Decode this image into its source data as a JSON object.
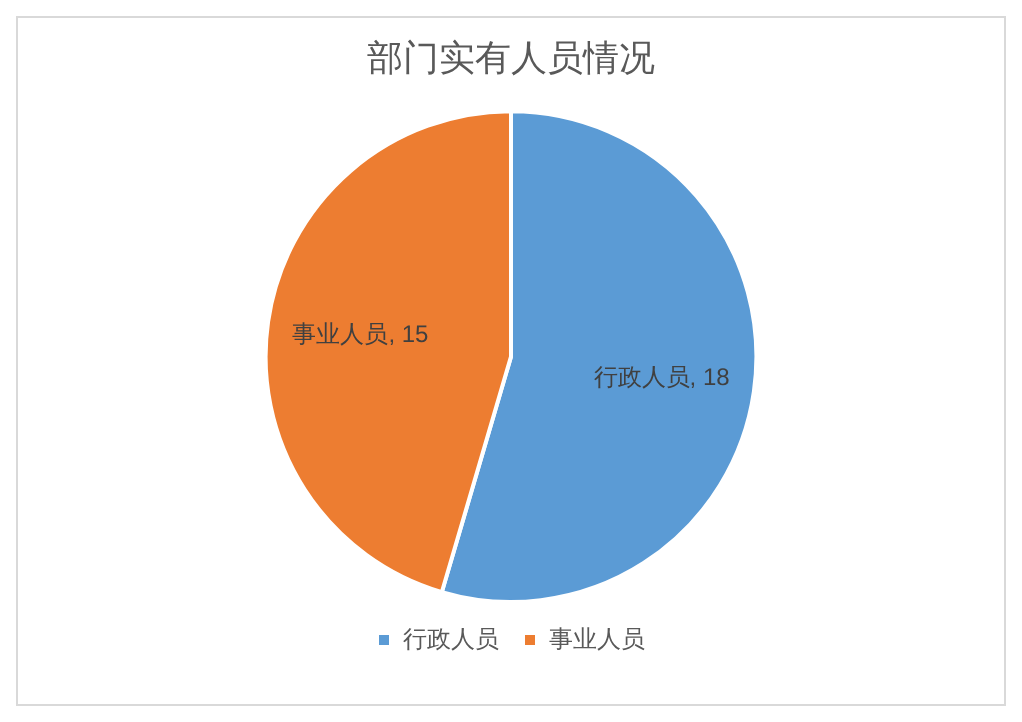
{
  "chart_data": {
    "type": "pie",
    "title": "部门实有人员情况",
    "categories": [
      "行政人员",
      "事业人员"
    ],
    "values": [
      18,
      15
    ],
    "colors": [
      "#5b9bd5",
      "#ed7d31"
    ],
    "value_labels": [
      "行政人员, 18",
      "事业人员, 15"
    ],
    "legend": "bottom"
  }
}
